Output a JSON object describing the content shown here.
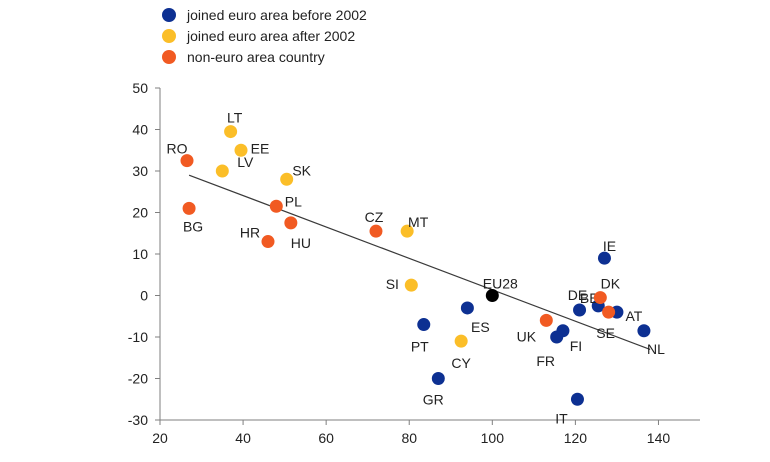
{
  "chart_data": {
    "type": "scatter",
    "title": "",
    "xlabel": "",
    "ylabel": "",
    "xlim": [
      20,
      150
    ],
    "ylim": [
      -30,
      50
    ],
    "x_ticks": [
      20,
      40,
      60,
      80,
      100,
      120,
      140
    ],
    "y_ticks": [
      50,
      40,
      30,
      20,
      10,
      0,
      -10,
      -20,
      -30
    ],
    "grid": false,
    "legend_position": "top",
    "series": [
      {
        "name": "joined euro area before 2002",
        "color": "#0d3092",
        "points": [
          {
            "label": "IE",
            "x": 127,
            "y": 9
          },
          {
            "label": "DE",
            "x": 121,
            "y": -3.5
          },
          {
            "label": "AT",
            "x": 130,
            "y": -4
          },
          {
            "label": "NL",
            "x": 136.5,
            "y": -8.5
          },
          {
            "label": "ES",
            "x": 94,
            "y": -3
          },
          {
            "label": "PT",
            "x": 83.5,
            "y": -7
          },
          {
            "label": "FI",
            "x": 117,
            "y": -8.5
          },
          {
            "label": "FR",
            "x": 115.5,
            "y": -10
          },
          {
            "label": "GR",
            "x": 87,
            "y": -20
          },
          {
            "label": "IT",
            "x": 120.5,
            "y": -25
          },
          {
            "label": "BE",
            "x": 125.5,
            "y": -2.5
          }
        ]
      },
      {
        "name": "joined euro area after 2002",
        "color": "#fbbe28",
        "points": [
          {
            "label": "LT",
            "x": 37,
            "y": 39.5
          },
          {
            "label": "LV",
            "x": 35,
            "y": 30
          },
          {
            "label": "EE",
            "x": 39.5,
            "y": 35
          },
          {
            "label": "SK",
            "x": 50.5,
            "y": 28
          },
          {
            "label": "MT",
            "x": 79.5,
            "y": 15.5
          },
          {
            "label": "SI",
            "x": 80.5,
            "y": 2.5
          },
          {
            "label": "CY",
            "x": 92.5,
            "y": -11
          }
        ]
      },
      {
        "name": "non-euro area country",
        "color": "#f15a22",
        "points": [
          {
            "label": "RO",
            "x": 26.5,
            "y": 32.5
          },
          {
            "label": "BG",
            "x": 27,
            "y": 21
          },
          {
            "label": "PL",
            "x": 48,
            "y": 21.5
          },
          {
            "label": "HR",
            "x": 46,
            "y": 13
          },
          {
            "label": "HU",
            "x": 51.5,
            "y": 17.5
          },
          {
            "label": "CZ",
            "x": 72,
            "y": 15.5
          },
          {
            "label": "UK",
            "x": 113,
            "y": -6
          },
          {
            "label": "DK",
            "x": 126,
            "y": -0.5
          },
          {
            "label": "SE",
            "x": 128,
            "y": -4
          }
        ]
      }
    ],
    "reference_point": {
      "label": "EU28",
      "x": 100,
      "y": 0,
      "color": "#000000"
    },
    "trendline": {
      "x1": 27,
      "y1": 29,
      "x2": 138,
      "y2": -13,
      "color": "#3a3a3a"
    }
  }
}
